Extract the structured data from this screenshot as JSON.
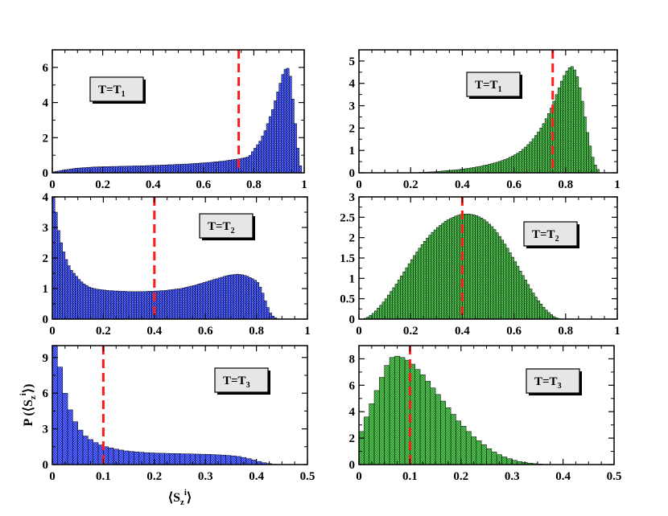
{
  "chart_data": [
    {
      "type": "bar",
      "panel": "left-top",
      "legend": {
        "base": "T=T",
        "sub": "1"
      },
      "legend_placement": "top-left",
      "xlim": [
        0,
        1
      ],
      "ylim": [
        0,
        7
      ],
      "xticks": [
        0,
        0.2,
        0.4,
        0.6,
        0.8,
        1
      ],
      "xticklabels": [
        "0",
        "0.2",
        "0.4",
        "0.6",
        "0.8",
        "1"
      ],
      "yticks": [
        0,
        2,
        4,
        6
      ],
      "yticklabels": [
        "0",
        "2",
        "4",
        "6"
      ],
      "bin_width": 0.01,
      "bar_color": "#1f33e6",
      "mean_line": 0.74,
      "mean_line_color": "#ff1a1a",
      "values": [
        0.05,
        0.08,
        0.1,
        0.13,
        0.16,
        0.18,
        0.2,
        0.22,
        0.24,
        0.26,
        0.27,
        0.28,
        0.29,
        0.3,
        0.31,
        0.32,
        0.33,
        0.33,
        0.34,
        0.34,
        0.35,
        0.35,
        0.35,
        0.36,
        0.36,
        0.36,
        0.37,
        0.37,
        0.37,
        0.38,
        0.38,
        0.38,
        0.39,
        0.39,
        0.39,
        0.4,
        0.4,
        0.41,
        0.41,
        0.42,
        0.42,
        0.43,
        0.43,
        0.44,
        0.44,
        0.45,
        0.46,
        0.46,
        0.47,
        0.48,
        0.48,
        0.49,
        0.5,
        0.5,
        0.51,
        0.52,
        0.53,
        0.54,
        0.55,
        0.56,
        0.57,
        0.58,
        0.59,
        0.6,
        0.62,
        0.63,
        0.65,
        0.66,
        0.68,
        0.7,
        0.72,
        0.74,
        0.76,
        0.78,
        0.8,
        0.83,
        0.86,
        0.9,
        1.0,
        1.2,
        1.4,
        1.6,
        1.8,
        2.1,
        2.4,
        2.8,
        3.2,
        3.6,
        4.1,
        4.6,
        5.1,
        5.6,
        5.9,
        5.95,
        5.5,
        4.2,
        2.8,
        1.4,
        0.4,
        0.0
      ]
    },
    {
      "type": "bar",
      "panel": "right-top",
      "legend": {
        "base": "T=T",
        "sub": "1"
      },
      "legend_placement": "top-left",
      "xlim": [
        0,
        1
      ],
      "ylim": [
        0,
        5.5
      ],
      "xticks": [
        0,
        0.2,
        0.4,
        0.6,
        0.8,
        1
      ],
      "xticklabels": [
        "0",
        "0.2",
        "0.4",
        "0.6",
        "0.8",
        "1"
      ],
      "yticks": [
        0,
        1,
        2,
        3,
        4,
        5
      ],
      "yticklabels": [
        "0",
        "1",
        "2",
        "3",
        "4",
        "5"
      ],
      "bin_width": 0.01,
      "bar_color": "#1f9b1f",
      "mean_line": 0.75,
      "mean_line_color": "#ff1a1a",
      "values": [
        0.0,
        0.0,
        0.0,
        0.0,
        0.0,
        0.0,
        0.0,
        0.0,
        0.0,
        0.0,
        0.0,
        0.0,
        0.0,
        0.0,
        0.0,
        0.0,
        0.0,
        0.0,
        0.0,
        0.0,
        0.01,
        0.01,
        0.01,
        0.02,
        0.02,
        0.03,
        0.03,
        0.04,
        0.04,
        0.05,
        0.06,
        0.07,
        0.08,
        0.09,
        0.1,
        0.11,
        0.12,
        0.13,
        0.14,
        0.16,
        0.17,
        0.19,
        0.2,
        0.22,
        0.24,
        0.26,
        0.28,
        0.3,
        0.33,
        0.35,
        0.38,
        0.41,
        0.44,
        0.47,
        0.51,
        0.55,
        0.59,
        0.64,
        0.69,
        0.75,
        0.81,
        0.88,
        0.96,
        1.05,
        1.15,
        1.26,
        1.38,
        1.52,
        1.67,
        1.83,
        2.0,
        2.2,
        2.42,
        2.65,
        2.9,
        3.2,
        3.5,
        3.8,
        4.1,
        4.35,
        4.55,
        4.7,
        4.75,
        4.6,
        4.3,
        3.8,
        3.2,
        2.5,
        1.8,
        1.2,
        0.7,
        0.35,
        0.15,
        0.0,
        0.0,
        0.0,
        0.0,
        0.0,
        0.0,
        0.0
      ]
    },
    {
      "type": "bar",
      "panel": "left-middle",
      "legend": {
        "base": "T=T",
        "sub": "2"
      },
      "legend_placement": "top-right",
      "xlim": [
        0,
        1
      ],
      "ylim": [
        0,
        4
      ],
      "xticks": [
        0,
        0.2,
        0.4,
        0.6,
        0.8,
        1
      ],
      "xticklabels": [
        "0",
        "0.2",
        "0.4",
        "0.6",
        "0.8",
        "1"
      ],
      "yticks": [
        0,
        1,
        2,
        3,
        4
      ],
      "yticklabels": [
        "0",
        "1",
        "2",
        "3",
        "4"
      ],
      "bin_width": 0.01,
      "bar_color": "#1f33e6",
      "mean_line": 0.4,
      "mean_line_color": "#ff1a1a",
      "values": [
        4.0,
        3.5,
        2.9,
        2.5,
        2.2,
        1.95,
        1.75,
        1.6,
        1.5,
        1.4,
        1.3,
        1.22,
        1.15,
        1.1,
        1.05,
        1.02,
        1.0,
        0.98,
        0.97,
        0.96,
        0.95,
        0.94,
        0.93,
        0.93,
        0.92,
        0.92,
        0.91,
        0.91,
        0.91,
        0.9,
        0.9,
        0.9,
        0.9,
        0.9,
        0.9,
        0.9,
        0.9,
        0.91,
        0.91,
        0.91,
        0.92,
        0.92,
        0.93,
        0.93,
        0.94,
        0.95,
        0.96,
        0.97,
        0.98,
        0.99,
        1.0,
        1.02,
        1.04,
        1.06,
        1.08,
        1.1,
        1.12,
        1.15,
        1.17,
        1.2,
        1.22,
        1.25,
        1.27,
        1.3,
        1.32,
        1.35,
        1.37,
        1.4,
        1.42,
        1.44,
        1.45,
        1.46,
        1.47,
        1.46,
        1.45,
        1.43,
        1.4,
        1.36,
        1.32,
        1.27,
        1.2,
        1.05,
        0.85,
        0.6,
        0.38,
        0.2,
        0.1,
        0.04,
        0.01,
        0.0,
        0.0,
        0.0,
        0.0,
        0.0,
        0.0,
        0.0,
        0.0,
        0.0,
        0.0,
        0.0
      ]
    },
    {
      "type": "bar",
      "panel": "right-middle",
      "legend": {
        "base": "T=T",
        "sub": "2"
      },
      "legend_placement": "top-right",
      "xlim": [
        0,
        1
      ],
      "ylim": [
        0,
        3
      ],
      "xticks": [
        0,
        0.2,
        0.4,
        0.6,
        0.8,
        1
      ],
      "xticklabels": [
        "0",
        "0.2",
        "0.4",
        "0.6",
        "0.8",
        "1"
      ],
      "yticks": [
        0,
        0.5,
        1,
        1.5,
        2,
        2.5,
        3
      ],
      "yticklabels": [
        "0",
        "0.5",
        "1",
        "1.5",
        "2",
        "2.5",
        "3"
      ],
      "bin_width": 0.01,
      "bar_color": "#1f9b1f",
      "mean_line": 0.4,
      "mean_line_color": "#ff1a1a",
      "values": [
        0.0,
        0.0,
        0.02,
        0.05,
        0.09,
        0.14,
        0.2,
        0.27,
        0.34,
        0.42,
        0.5,
        0.59,
        0.68,
        0.77,
        0.86,
        0.96,
        1.06,
        1.16,
        1.26,
        1.36,
        1.46,
        1.56,
        1.65,
        1.74,
        1.83,
        1.91,
        1.99,
        2.06,
        2.13,
        2.19,
        2.25,
        2.3,
        2.35,
        2.4,
        2.44,
        2.47,
        2.5,
        2.53,
        2.55,
        2.57,
        2.58,
        2.58,
        2.58,
        2.57,
        2.56,
        2.54,
        2.51,
        2.48,
        2.44,
        2.39,
        2.33,
        2.27,
        2.2,
        2.12,
        2.03,
        1.94,
        1.84,
        1.74,
        1.63,
        1.52,
        1.41,
        1.3,
        1.18,
        1.07,
        0.96,
        0.85,
        0.74,
        0.64,
        0.54,
        0.45,
        0.37,
        0.29,
        0.22,
        0.16,
        0.11,
        0.06,
        0.03,
        0.01,
        0.0,
        0.0,
        0.0,
        0.0,
        0.0,
        0.0,
        0.0,
        0.0,
        0.0,
        0.0,
        0.0,
        0.0,
        0.0,
        0.0,
        0.0,
        0.0,
        0.0,
        0.0,
        0.0,
        0.0,
        0.0,
        0.0
      ]
    },
    {
      "type": "bar",
      "panel": "left-bottom",
      "legend": {
        "base": "T=T",
        "sub": "3"
      },
      "legend_placement": "top-right",
      "xlim": [
        0,
        0.5
      ],
      "ylim": [
        0,
        10
      ],
      "xticks": [
        0,
        0.1,
        0.2,
        0.3,
        0.4,
        0.5
      ],
      "xticklabels": [
        "0",
        "0.1",
        "0.2",
        "0.3",
        "0.4",
        "0.5"
      ],
      "yticks": [
        0,
        3,
        6,
        9
      ],
      "yticklabels": [
        "0",
        "3",
        "6",
        "9"
      ],
      "bin_width": 0.01,
      "bar_color": "#1f33e6",
      "mean_line": 0.1,
      "mean_line_color": "#ff1a1a",
      "ylabel": {
        "base": "P (⟨S",
        "sub": "z",
        "sup": "i",
        "end": "⟩)"
      },
      "xlabel": {
        "base": "⟨S",
        "sub": "z",
        "sup": "i",
        "end": "⟩"
      },
      "values": [
        10.0,
        8.2,
        6.0,
        4.6,
        3.6,
        2.9,
        2.4,
        2.1,
        1.85,
        1.65,
        1.5,
        1.4,
        1.3,
        1.22,
        1.15,
        1.1,
        1.06,
        1.03,
        1.0,
        0.98,
        0.96,
        0.95,
        0.94,
        0.93,
        0.92,
        0.91,
        0.9,
        0.89,
        0.88,
        0.87,
        0.86,
        0.84,
        0.82,
        0.8,
        0.77,
        0.73,
        0.68,
        0.6,
        0.5,
        0.38,
        0.26,
        0.16,
        0.08,
        0.03,
        0.01,
        0.0,
        0.0,
        0.0,
        0.0,
        0.0
      ]
    },
    {
      "type": "bar",
      "panel": "right-bottom",
      "legend": {
        "base": "T=T",
        "sub": "3"
      },
      "legend_placement": "top-right",
      "xlim": [
        0,
        0.5
      ],
      "ylim": [
        0,
        9
      ],
      "xticks": [
        0,
        0.1,
        0.2,
        0.3,
        0.4,
        0.5
      ],
      "xticklabels": [
        "0",
        "0.1",
        "0.2",
        "0.3",
        "0.4",
        "0.5"
      ],
      "yticks": [
        0,
        2,
        4,
        6,
        8
      ],
      "yticklabels": [
        "0",
        "2",
        "4",
        "6",
        "8"
      ],
      "bin_width": 0.01,
      "bar_color": "#1f9b1f",
      "mean_line": 0.1,
      "mean_line_color": "#ff1a1a",
      "values": [
        2.5,
        3.6,
        4.6,
        5.6,
        6.6,
        7.5,
        8.1,
        8.2,
        8.1,
        7.9,
        7.6,
        7.2,
        6.8,
        6.3,
        5.8,
        5.3,
        4.8,
        4.3,
        3.8,
        3.3,
        2.9,
        2.5,
        2.1,
        1.8,
        1.5,
        1.2,
        0.95,
        0.75,
        0.58,
        0.44,
        0.32,
        0.23,
        0.16,
        0.11,
        0.07,
        0.04,
        0.02,
        0.01,
        0.0,
        0.0,
        0.0,
        0.0,
        0.0,
        0.0,
        0.0,
        0.0,
        0.0,
        0.0,
        0.0,
        0.0
      ]
    }
  ]
}
